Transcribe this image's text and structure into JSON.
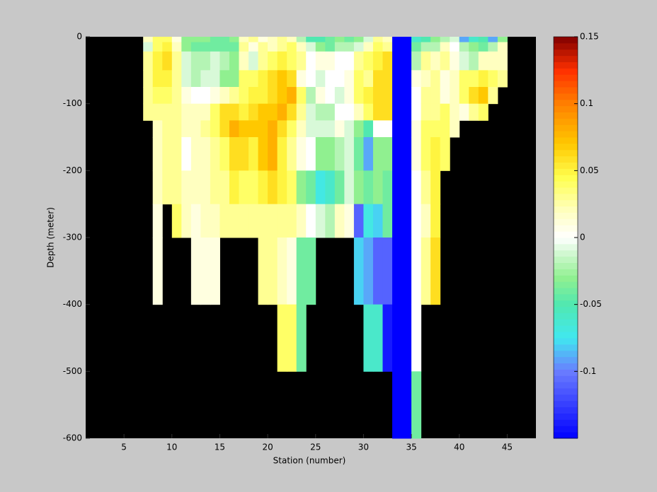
{
  "chart_data": {
    "type": "heatmap",
    "xlabel": "Station (number)",
    "ylabel": "Depth (meter)",
    "xlim": [
      1,
      48
    ],
    "ylim": [
      -600,
      0
    ],
    "xticks": [
      5,
      10,
      15,
      20,
      25,
      30,
      35,
      40,
      45
    ],
    "yticks": [
      0,
      -100,
      -200,
      -300,
      -400,
      -500,
      -600
    ],
    "clim": [
      -0.15,
      0.15
    ],
    "cticks": [
      0.15,
      0.1,
      0.05,
      0,
      -0.05,
      -0.1
    ],
    "background": "#000000",
    "colormap": [
      {
        "value": -0.15,
        "color": "#0000ff"
      },
      {
        "value": -0.1,
        "color": "#6a7cff"
      },
      {
        "value": -0.075,
        "color": "#40e8f0"
      },
      {
        "value": -0.05,
        "color": "#50e8b0"
      },
      {
        "value": -0.03,
        "color": "#90f090"
      },
      {
        "value": -0.012,
        "color": "#d0f8d0"
      },
      {
        "value": 0,
        "color": "#ffffff"
      },
      {
        "value": 0.02,
        "color": "#ffffc0"
      },
      {
        "value": 0.045,
        "color": "#ffff50"
      },
      {
        "value": 0.07,
        "color": "#ffc800"
      },
      {
        "value": 0.1,
        "color": "#ff8000"
      },
      {
        "value": 0.125,
        "color": "#ff3000"
      },
      {
        "value": 0.15,
        "color": "#800000"
      }
    ],
    "x_edges": [
      7,
      8,
      9,
      10,
      11,
      12,
      13,
      14,
      15,
      16,
      17,
      18,
      19,
      20,
      21,
      22,
      23,
      24,
      25,
      26,
      27,
      28,
      29,
      30,
      31,
      32,
      33,
      34,
      35,
      36,
      37,
      38,
      39,
      40,
      41,
      42,
      43,
      44,
      45
    ],
    "y_edges": [
      0,
      -8,
      -22,
      -50,
      -75,
      -100,
      -125,
      -150,
      -200,
      -250,
      -300,
      -400,
      -500,
      -600
    ],
    "z": [
      [
        0.02,
        -0.01,
        0.03,
        0.03,
        0.03,
        0.03,
        null,
        null,
        null,
        null,
        null,
        null,
        null
      ],
      [
        0.04,
        0.04,
        0.05,
        0.05,
        0.04,
        0.03,
        0.02,
        0.02,
        0.02,
        0.01,
        0.01,
        null,
        null
      ],
      [
        0.04,
        0.05,
        0.06,
        0.05,
        0.04,
        0.03,
        0.03,
        0.03,
        0.03,
        null,
        null,
        null,
        null
      ],
      [
        0.01,
        0.02,
        0.03,
        0.03,
        0.03,
        0.03,
        0.03,
        0.03,
        0.03,
        0.04,
        null,
        null,
        null
      ],
      [
        -0.03,
        -0.03,
        -0.01,
        -0.01,
        0.01,
        0.02,
        0.02,
        0,
        0.02,
        0.02,
        null,
        null,
        null
      ],
      [
        -0.03,
        -0.04,
        -0.02,
        -0.02,
        0,
        0.02,
        0.02,
        0.02,
        0.02,
        0.01,
        0.01,
        null,
        null
      ],
      [
        -0.03,
        -0.04,
        -0.02,
        -0.01,
        0,
        0.02,
        0.03,
        0.02,
        0.02,
        0.02,
        0.01,
        null,
        null
      ],
      [
        -0.04,
        -0.04,
        -0.01,
        -0.01,
        0.01,
        0.04,
        0.04,
        0.03,
        0.03,
        0.02,
        0.01,
        null,
        null
      ],
      [
        -0.04,
        -0.04,
        -0.02,
        -0.03,
        0.02,
        0.06,
        0.06,
        0.04,
        0.03,
        0.03,
        null,
        null,
        null
      ],
      [
        -0.03,
        -0.04,
        -0.03,
        -0.03,
        0.03,
        0.06,
        0.08,
        0.06,
        0.05,
        0.03,
        null,
        null,
        null
      ],
      [
        0.02,
        0.03,
        0.02,
        0.04,
        0.04,
        0.05,
        0.07,
        0.06,
        0.04,
        0.03,
        null,
        null,
        null
      ],
      [
        0.03,
        0.01,
        -0.01,
        0.04,
        0.05,
        0.06,
        0.07,
        0.05,
        0.04,
        0.03,
        null,
        null,
        null
      ],
      [
        0.01,
        0.03,
        0.03,
        0.05,
        0.05,
        0.07,
        0.07,
        0.07,
        0.05,
        0.03,
        0.03,
        null,
        null
      ],
      [
        0.02,
        0.02,
        0.04,
        0.06,
        0.06,
        0.07,
        0.08,
        0.08,
        0.06,
        0.03,
        0.03,
        null,
        null
      ],
      [
        0.03,
        0.03,
        0.05,
        0.07,
        0.07,
        0.08,
        0.06,
        0.05,
        0.05,
        0.03,
        0.02,
        0.04,
        null
      ],
      [
        0.02,
        0.04,
        0.04,
        0.06,
        0.08,
        0.06,
        0.04,
        0.03,
        0.04,
        0.03,
        0.01,
        0.04,
        null
      ],
      [
        -0.02,
        0.02,
        0.03,
        0.01,
        0.04,
        0.03,
        0.02,
        0.01,
        -0.03,
        0.02,
        -0.04,
        -0.04,
        null
      ],
      [
        -0.05,
        -0.01,
        0,
        0,
        -0.02,
        -0.01,
        -0.01,
        0,
        -0.04,
        0,
        -0.04,
        null,
        null
      ],
      [
        -0.05,
        -0.03,
        0.01,
        -0.01,
        0.01,
        -0.02,
        -0.01,
        -0.03,
        -0.07,
        -0.01,
        null,
        null,
        null
      ],
      [
        -0.04,
        -0.04,
        0.01,
        0,
        0,
        -0.02,
        -0.01,
        -0.03,
        -0.06,
        -0.02,
        null,
        null,
        null
      ],
      [
        -0.03,
        -0.02,
        0,
        0,
        -0.01,
        0,
        0.01,
        -0.02,
        -0.04,
        0.02,
        null,
        null,
        null
      ],
      [
        -0.04,
        -0.02,
        0,
        0.01,
        0.01,
        0,
        -0.01,
        -0.01,
        -0.01,
        0.01,
        null,
        null,
        null
      ],
      [
        -0.03,
        -0.01,
        0.03,
        0.04,
        0.04,
        0.02,
        -0.03,
        -0.04,
        -0.03,
        -0.11,
        -0.08,
        null,
        null
      ],
      [
        -0.01,
        0.02,
        0.04,
        0.03,
        0.05,
        0.04,
        -0.05,
        -0.09,
        -0.04,
        -0.07,
        -0.09,
        -0.06,
        null
      ],
      [
        0.03,
        0.04,
        0.05,
        0.06,
        0.06,
        0.06,
        0,
        -0.03,
        -0.03,
        -0.08,
        -0.11,
        -0.06,
        null
      ],
      [
        0.02,
        0.03,
        0.06,
        0.06,
        0.06,
        0.06,
        0,
        -0.03,
        -0.04,
        -0.04,
        -0.11,
        -0.14,
        null
      ],
      [
        -0.15,
        -0.15,
        -0.15,
        -0.15,
        -0.15,
        -0.15,
        -0.15,
        -0.15,
        -0.15,
        -0.15,
        -0.15,
        -0.15,
        -0.15
      ],
      [
        -0.15,
        -0.15,
        -0.15,
        -0.15,
        -0.15,
        -0.15,
        -0.15,
        -0.15,
        -0.15,
        -0.15,
        -0.15,
        -0.15,
        -0.15
      ],
      [
        -0.06,
        -0.04,
        -0.02,
        0.01,
        0,
        0,
        0.01,
        0.01,
        0,
        0,
        0,
        0,
        -0.04
      ],
      [
        -0.05,
        -0.02,
        0.03,
        0.02,
        0.03,
        0.03,
        0.04,
        0.04,
        0.03,
        0.02,
        0.03,
        null,
        null
      ],
      [
        -0.03,
        -0.02,
        0.02,
        0.03,
        0.03,
        0.03,
        0.04,
        0.05,
        0.05,
        0.05,
        0.06,
        null,
        null
      ],
      [
        -0.02,
        0.02,
        0.03,
        0.01,
        0.01,
        0.04,
        0.04,
        0.04,
        null,
        null,
        null,
        null,
        null
      ],
      [
        -0.01,
        0,
        0.01,
        0.02,
        0.02,
        0.02,
        0.02,
        null,
        null,
        null,
        null,
        null,
        null
      ],
      [
        -0.09,
        -0.02,
        -0.01,
        0.04,
        0.04,
        0.01,
        null,
        null,
        null,
        null,
        null,
        null,
        null
      ],
      [
        -0.06,
        -0.03,
        -0.02,
        0.04,
        0.06,
        0.03,
        null,
        null,
        null,
        null,
        null,
        null,
        null
      ],
      [
        -0.05,
        -0.04,
        0.02,
        0.05,
        0.07,
        0.04,
        null,
        null,
        null,
        null,
        null,
        null,
        null
      ],
      [
        -0.09,
        -0.02,
        0.02,
        0.04,
        0.03,
        null,
        null,
        null,
        null,
        null,
        null,
        null,
        null
      ],
      [
        -0.03,
        0.02,
        0.02,
        0.03,
        null,
        null,
        null,
        null,
        null,
        null,
        null,
        null,
        null
      ]
    ]
  }
}
